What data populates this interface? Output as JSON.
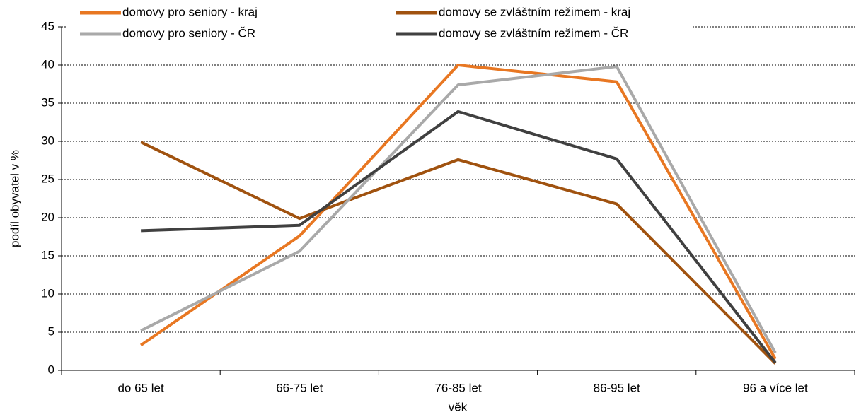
{
  "chart_data": {
    "type": "line",
    "categories": [
      "do 65 let",
      "66-75 let",
      "76-85 let",
      "86-95 let",
      "96 a více let"
    ],
    "series": [
      {
        "name": "domovy pro seniory - kraj",
        "color": "#e87722",
        "values": [
          3.3,
          17.6,
          40.0,
          37.8,
          1.5
        ]
      },
      {
        "name": "domovy se zvláštním režimem - kraj",
        "color": "#a0520f",
        "values": [
          29.9,
          19.9,
          27.6,
          21.8,
          0.9
        ]
      },
      {
        "name": "domovy pro seniory - ČR",
        "color": "#a9a9a9",
        "values": [
          5.2,
          15.6,
          37.4,
          39.8,
          2.3
        ]
      },
      {
        "name": "domovy se zvláštním režimem - ČR",
        "color": "#404040",
        "values": [
          18.3,
          19.0,
          33.9,
          27.7,
          1.0
        ]
      }
    ],
    "ylabel": "podíl obyvatel v %",
    "xlabel": "věk",
    "ylim": [
      0,
      45
    ],
    "yticks": [
      0,
      5,
      10,
      15,
      20,
      25,
      30,
      35,
      40,
      45
    ],
    "grid": true,
    "legend": "top"
  }
}
